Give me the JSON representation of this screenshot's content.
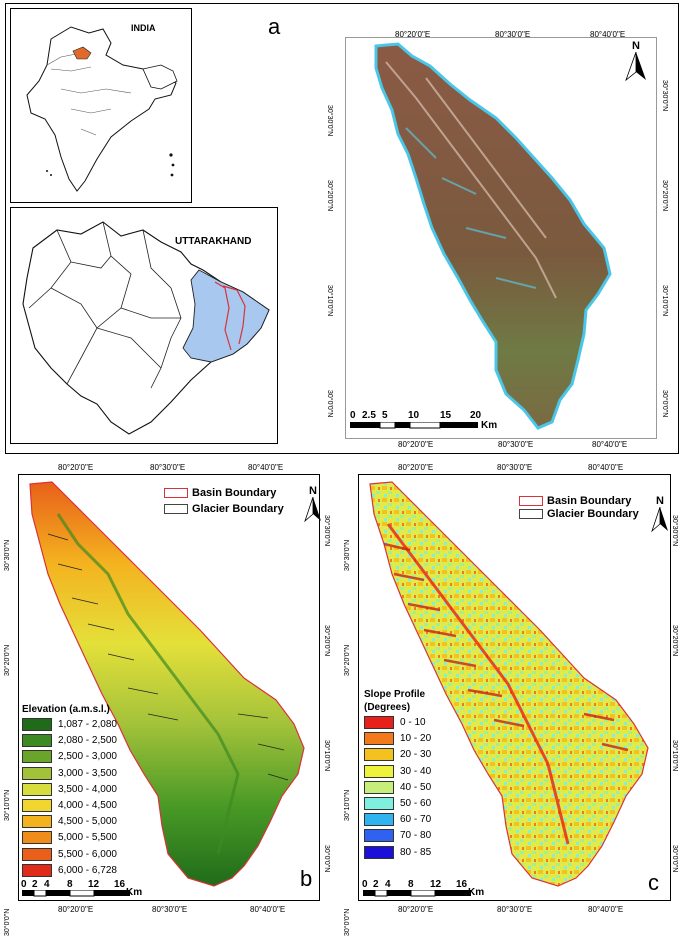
{
  "panel_a": {
    "label": "a",
    "india_title": "INDIA",
    "state_title": "UTTARAKHAND",
    "coords_top": [
      "80°20'0\"E",
      "80°30'0\"E",
      "80°40'0\"E"
    ],
    "coords_bottom": [
      "80°20'0\"E",
      "80°30'0\"E",
      "80°40'0\"E"
    ],
    "coords_left": [
      "30°30'0\"N",
      "30°20'0\"N",
      "30°10'0\"N",
      "30°0'0\"N"
    ],
    "coords_right": [
      "30°30'0\"N",
      "30°20'0\"N",
      "30°10'0\"N",
      "30°0'0\"N"
    ],
    "north": "N",
    "scale_ticks": [
      "0",
      "2.5",
      "5",
      "10",
      "15",
      "20"
    ],
    "scale_unit": "Km",
    "india_highlight_color": "#e06a2a",
    "basin_fill_color": "#a8c8ef"
  },
  "panel_b": {
    "label": "b",
    "coords_top": [
      "80°20'0\"E",
      "80°30'0\"E",
      "80°40'0\"E"
    ],
    "coords_bottom": [
      "80°20'0\"E",
      "80°30'0\"E",
      "80°40'0\"E"
    ],
    "coords_left": [
      "30°30'0\"N",
      "30°20'0\"N",
      "30°10'0\"N",
      "30°0'0\"N"
    ],
    "coords_right": [
      "30°30'0\"N",
      "30°20'0\"N",
      "30°10'0\"N",
      "30°0'0\"N"
    ],
    "north": "N",
    "basin_boundary": "Basin Boundary",
    "glacier_boundary": "Glacier Boundary",
    "legend_title": "Elevation (a.m.s.l.)",
    "legend": [
      {
        "label": "1,087 - 2,080",
        "color": "#1f6b1a"
      },
      {
        "label": "2,080 - 2,500",
        "color": "#3d8a22"
      },
      {
        "label": "2,500 - 3,000",
        "color": "#6aa52a"
      },
      {
        "label": "3,000 - 3,500",
        "color": "#a3c23a"
      },
      {
        "label": "3,500 - 4,000",
        "color": "#d6dd3c"
      },
      {
        "label": "4,000 - 4,500",
        "color": "#f2d630"
      },
      {
        "label": "4,500 - 5,000",
        "color": "#f4b21f"
      },
      {
        "label": "5,000 - 5,500",
        "color": "#f08c1a"
      },
      {
        "label": "5,500 - 6,000",
        "color": "#e8601a"
      },
      {
        "label": "6,000 - 6,728",
        "color": "#e02a1a"
      }
    ],
    "scale_ticks": [
      "0",
      "2",
      "4",
      "8",
      "12",
      "16"
    ],
    "scale_unit": "Km"
  },
  "panel_c": {
    "label": "c",
    "coords_top": [
      "80°20'0\"E",
      "80°30'0\"E",
      "80°40'0\"E"
    ],
    "coords_bottom": [
      "80°20'0\"E",
      "80°30'0\"E",
      "80°40'0\"E"
    ],
    "coords_left": [
      "30°30'0\"N",
      "30°20'0\"N",
      "30°10'0\"N",
      "30°0'0\"N"
    ],
    "coords_right": [
      "30°30'0\"N",
      "30°20'0\"N",
      "30°10'0\"N",
      "30°0'0\"N"
    ],
    "north": "N",
    "basin_boundary": "Basin Boundary",
    "glacier_boundary": "Glacier Boundary",
    "legend_title_1": "Slope Profile",
    "legend_title_2": "(Degrees)",
    "legend": [
      {
        "label": "0 - 10",
        "color": "#e8201a"
      },
      {
        "label": "10 - 20",
        "color": "#f27a1a"
      },
      {
        "label": "20 - 30",
        "color": "#f4c21f"
      },
      {
        "label": "30 - 40",
        "color": "#eef23a"
      },
      {
        "label": "40 - 50",
        "color": "#c6ee7a"
      },
      {
        "label": "50 - 60",
        "color": "#7ff0e0"
      },
      {
        "label": "60 - 70",
        "color": "#2fb4f0"
      },
      {
        "label": "70 - 80",
        "color": "#2f62f0"
      },
      {
        "label": "80 - 85",
        "color": "#1a10d8"
      }
    ],
    "scale_ticks": [
      "0",
      "2",
      "4",
      "8",
      "12",
      "16"
    ],
    "scale_unit": "Km"
  }
}
